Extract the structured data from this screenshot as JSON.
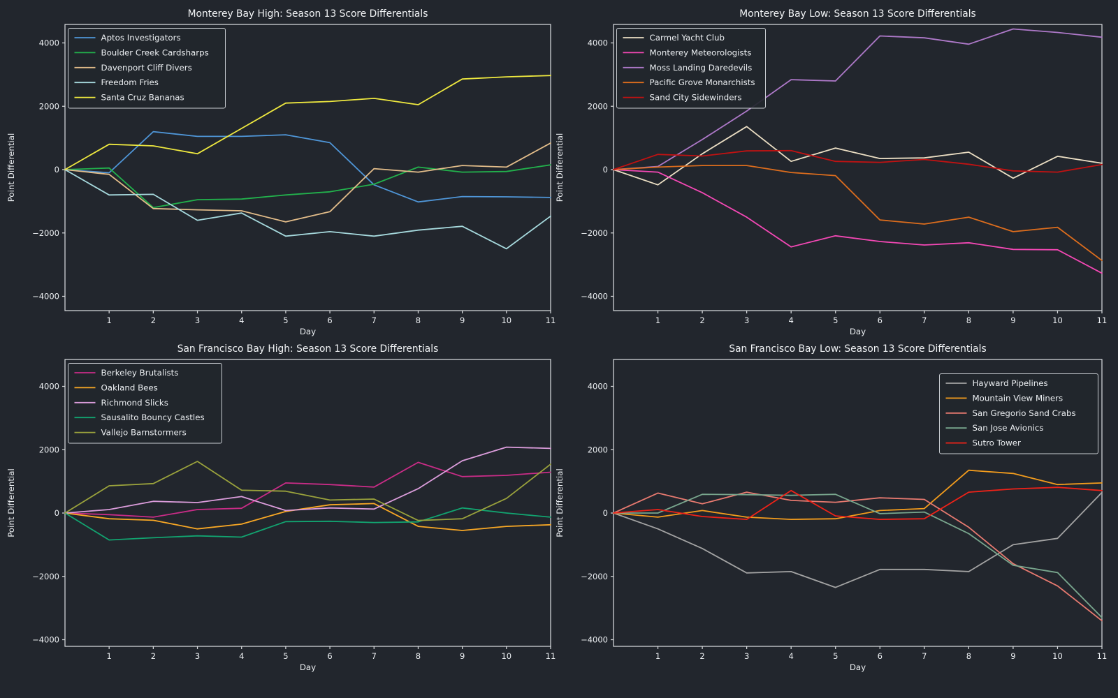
{
  "figure": {
    "background": "#22262d",
    "text_color": "#eceff2",
    "spine_color": "#d7dadd",
    "xlabel": "Day",
    "ylabel": "Point Differential",
    "xtick_labels": [
      "1",
      "2",
      "3",
      "4",
      "5",
      "6",
      "7",
      "8",
      "9",
      "10",
      "11"
    ],
    "ytick_labels": [
      "4000",
      "2000",
      "0",
      "−2000",
      "−4000"
    ],
    "ytick_values": [
      4000,
      2000,
      0,
      -2000,
      -4000
    ]
  },
  "chart_data": [
    {
      "type": "line",
      "title": "Monterey Bay High: Season 13 Score Differentials",
      "xlabel": "Day",
      "ylabel": "Point Differential",
      "x": [
        0,
        1,
        2,
        3,
        4,
        5,
        6,
        7,
        8,
        9,
        10,
        11
      ],
      "xticks": [
        1,
        2,
        3,
        4,
        5,
        6,
        7,
        8,
        9,
        10,
        11
      ],
      "yticks": [
        4000,
        2000,
        0,
        -2000,
        -4000
      ],
      "ylim": [
        -4530,
        4580
      ],
      "grid": false,
      "legend_position": "upper left",
      "series": [
        {
          "name": "Aptos Investigators",
          "color": "#4f96d8",
          "values": [
            0,
            -100,
            1200,
            1050,
            1050,
            1100,
            850,
            -480,
            -1020,
            -850,
            -860,
            -880
          ]
        },
        {
          "name": "Boulder Creek Cardsharps",
          "color": "#22b14c",
          "values": [
            0,
            50,
            -1200,
            -950,
            -930,
            -800,
            -700,
            -460,
            80,
            -80,
            -60,
            150
          ]
        },
        {
          "name": "Davenport Cliff Divers",
          "color": "#e3bd8a",
          "values": [
            0,
            -150,
            -1230,
            -1270,
            -1300,
            -1650,
            -1330,
            30,
            -80,
            130,
            80,
            840
          ]
        },
        {
          "name": "Freedom Fries",
          "color": "#a6d9dd",
          "values": [
            0,
            -800,
            -780,
            -1600,
            -1370,
            -2100,
            -1960,
            -2100,
            -1910,
            -1790,
            -2500,
            -1470
          ]
        },
        {
          "name": "Santa Cruz Bananas",
          "color": "#efe93f",
          "values": [
            0,
            800,
            750,
            500,
            1300,
            2100,
            2150,
            2250,
            2050,
            2860,
            2930,
            2970
          ]
        }
      ]
    },
    {
      "type": "line",
      "title": "Monterey Bay Low: Season 13 Score Differentials",
      "xlabel": "Day",
      "ylabel": "Point Differential",
      "x": [
        0,
        1,
        2,
        3,
        4,
        5,
        6,
        7,
        8,
        9,
        10,
        11
      ],
      "xticks": [
        1,
        2,
        3,
        4,
        5,
        6,
        7,
        8,
        9,
        10,
        11
      ],
      "yticks": [
        4000,
        2000,
        0,
        -2000,
        -4000
      ],
      "ylim": [
        -4530,
        4580
      ],
      "grid": false,
      "legend_position": "upper left",
      "series": [
        {
          "name": "Carmel Yacht Club",
          "color": "#ecdfc4",
          "values": [
            0,
            -480,
            500,
            1360,
            260,
            680,
            350,
            370,
            550,
            -270,
            420,
            200
          ]
        },
        {
          "name": "Monterey Meteorologists",
          "color": "#f448b5",
          "values": [
            0,
            -80,
            -730,
            -1500,
            -2440,
            -2090,
            -2270,
            -2380,
            -2310,
            -2520,
            -2530,
            -3270
          ]
        },
        {
          "name": "Moss Landing Daredevils",
          "color": "#ae79c9",
          "values": [
            0,
            100,
            950,
            1850,
            2840,
            2800,
            4220,
            4160,
            3960,
            4440,
            4330,
            4180
          ]
        },
        {
          "name": "Pacific Grove Monarchists",
          "color": "#dd6d1d",
          "values": [
            0,
            80,
            130,
            130,
            -90,
            -190,
            -1590,
            -1720,
            -1500,
            -1960,
            -1820,
            -2870
          ]
        },
        {
          "name": "Sand City Sidewinders",
          "color": "#c11212",
          "values": [
            0,
            480,
            430,
            590,
            600,
            260,
            230,
            320,
            170,
            -40,
            -80,
            160
          ]
        }
      ]
    },
    {
      "type": "line",
      "title": "San Francisco Bay High: Season 13 Score Differentials",
      "xlabel": "Day",
      "ylabel": "Point Differential",
      "x": [
        0,
        1,
        2,
        3,
        4,
        5,
        6,
        7,
        8,
        9,
        10,
        11
      ],
      "xticks": [
        1,
        2,
        3,
        4,
        5,
        6,
        7,
        8,
        9,
        10,
        11
      ],
      "yticks": [
        4000,
        2000,
        0,
        -2000,
        -4000
      ],
      "ylim": [
        -4210,
        4850
      ],
      "grid": false,
      "legend_position": "upper left",
      "series": [
        {
          "name": "Berkeley Brutalists",
          "color": "#c92c87",
          "values": [
            0,
            -50,
            -130,
            110,
            150,
            950,
            900,
            820,
            1600,
            1150,
            1190,
            1290
          ]
        },
        {
          "name": "Oakland Bees",
          "color": "#f9a825",
          "values": [
            0,
            -180,
            -230,
            -500,
            -350,
            50,
            260,
            300,
            -420,
            -550,
            -420,
            -370
          ]
        },
        {
          "name": "Richmond Slicks",
          "color": "#dc9ddc",
          "values": [
            0,
            110,
            370,
            330,
            520,
            80,
            160,
            125,
            770,
            1650,
            2080,
            2040
          ]
        },
        {
          "name": "Sausalito Bouncy Castles",
          "color": "#12a470",
          "values": [
            0,
            -850,
            -780,
            -720,
            -760,
            -270,
            -260,
            -300,
            -280,
            160,
            0,
            -130
          ]
        },
        {
          "name": "Vallejo Barnstormers",
          "color": "#9aa23c",
          "values": [
            0,
            860,
            930,
            1630,
            720,
            690,
            410,
            440,
            -235,
            -180,
            460,
            1540
          ]
        }
      ]
    },
    {
      "type": "line",
      "title": "San Francisco Bay Low: Season 13 Score Differentials",
      "xlabel": "Day",
      "ylabel": "Point Differential",
      "x": [
        0,
        1,
        2,
        3,
        4,
        5,
        6,
        7,
        8,
        9,
        10,
        11
      ],
      "xticks": [
        1,
        2,
        3,
        4,
        5,
        6,
        7,
        8,
        9,
        10,
        11
      ],
      "yticks": [
        4000,
        2000,
        0,
        -2000,
        -4000
      ],
      "ylim": [
        -4210,
        4850
      ],
      "grid": false,
      "legend_position": "upper right",
      "series": [
        {
          "name": "Hayward Pipelines",
          "color": "#a3a3a3",
          "values": [
            0,
            -500,
            -1120,
            -1890,
            -1850,
            -2350,
            -1780,
            -1780,
            -1850,
            -1000,
            -800,
            650
          ]
        },
        {
          "name": "Mountain View Miners",
          "color": "#f39c1d",
          "values": [
            0,
            -130,
            80,
            -130,
            -200,
            -180,
            80,
            140,
            1350,
            1250,
            900,
            950
          ]
        },
        {
          "name": "San Gregorio Sand Crabs",
          "color": "#e87a70",
          "values": [
            0,
            630,
            290,
            660,
            400,
            340,
            480,
            430,
            -450,
            -1600,
            -2300,
            -3400
          ]
        },
        {
          "name": "San Jose Avionics",
          "color": "#79a78e",
          "values": [
            0,
            0,
            590,
            580,
            560,
            590,
            -20,
            30,
            -650,
            -1650,
            -1880,
            -3300
          ]
        },
        {
          "name": "Sutro Tower",
          "color": "#ef2218",
          "values": [
            0,
            110,
            -110,
            -200,
            710,
            -90,
            -200,
            -180,
            660,
            760,
            810,
            710
          ]
        }
      ]
    }
  ]
}
